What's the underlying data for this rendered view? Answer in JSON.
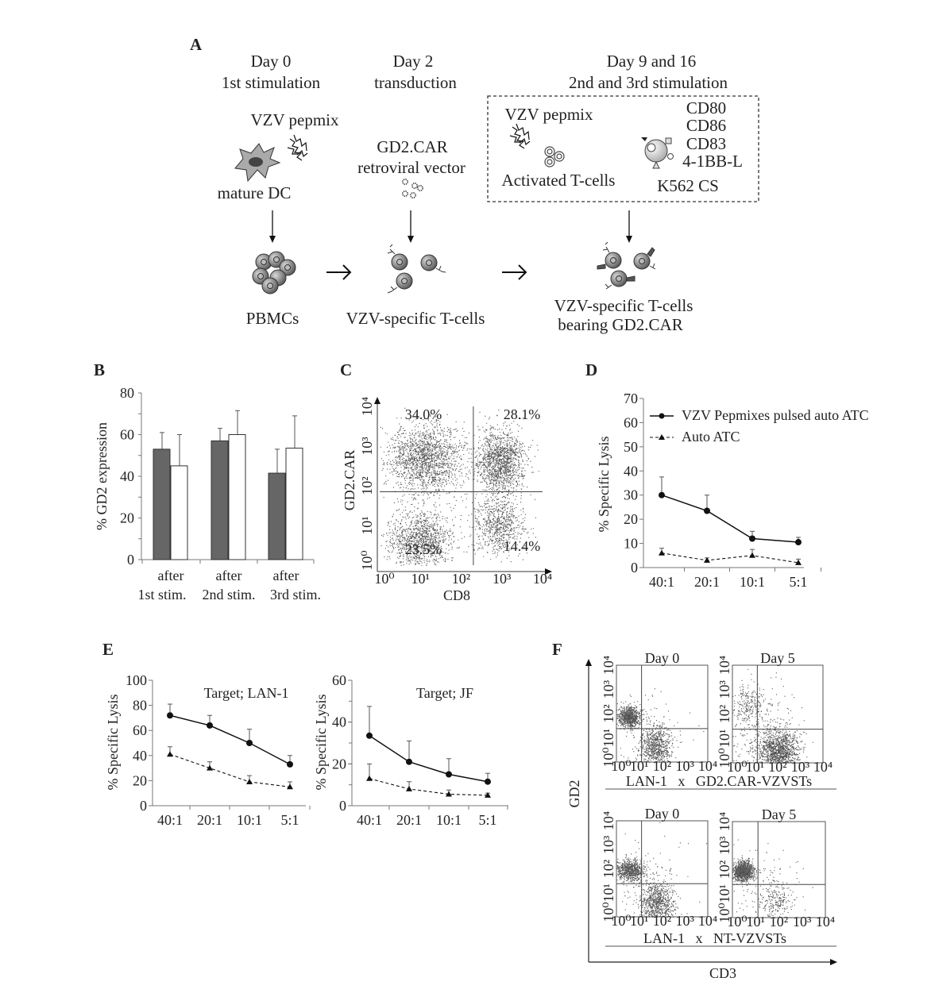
{
  "panel_labels": {
    "A": "A",
    "B": "B",
    "C": "C",
    "D": "D",
    "E": "E",
    "F": "F"
  },
  "schematic": {
    "steps": [
      {
        "day": "Day 0",
        "event": "1st stimulation"
      },
      {
        "day": "Day 2",
        "event": "transduction"
      },
      {
        "day": "Day 9 and 16",
        "event": "2nd and 3rd stimulation"
      }
    ],
    "labels": {
      "vzv_pepmix_1": "VZV pepmix",
      "mature_dc": "mature DC",
      "gd2car": "GD2.CAR",
      "retroviral_vector": "retroviral vector",
      "vzv_pepmix_2": "VZV pepmix",
      "activated_tcells": "Activated T-cells",
      "costim": [
        "CD80",
        "CD86",
        "CD83",
        "4-1BB-L"
      ],
      "k562": "K562 CS",
      "pbmcs": "PBMCs",
      "vzv_tcells": "VZV-specific T-cells",
      "final_line1": "VZV-specific T-cells",
      "final_line2": "bearing GD2.CAR"
    },
    "icons": [
      "dendritic-cell-icon",
      "peptide-mix-icon",
      "retrovirus-icon",
      "pbmc-cluster-icon",
      "t-cell-icon",
      "activated-t-cell-icon",
      "k562-cell-icon",
      "arrow-icon"
    ]
  },
  "chart_data": [
    {
      "panel": "B",
      "type": "bar",
      "categories": [
        [
          "after",
          "1st stim."
        ],
        [
          "after",
          "2nd stim."
        ],
        [
          "after",
          "3rd stim."
        ]
      ],
      "series": [
        {
          "values": [
            53,
            57,
            41.5
          ],
          "errors": [
            8,
            6,
            11.5
          ],
          "color": "#666666"
        },
        {
          "values": [
            45,
            60,
            53.5
          ],
          "errors": [
            15,
            11.5,
            15.5
          ],
          "color": "#ffffff"
        }
      ],
      "ylabel": "% GD2 expression",
      "ylim": [
        0,
        80
      ],
      "yticks": [
        0,
        20,
        40,
        60,
        80
      ],
      "grid": false
    },
    {
      "panel": "C",
      "type": "scatter",
      "subtype": "flow-cytometry-dot-plot",
      "xlabel": "CD8",
      "ylabel": "GD2.CAR",
      "scale": "log",
      "xticks": [
        "10⁰",
        "10¹",
        "10²",
        "10³",
        "10⁴"
      ],
      "yticks": [
        "10⁰",
        "10¹",
        "10²",
        "10³",
        "10⁴"
      ],
      "gate_decades": [
        2.3,
        1.85
      ],
      "quadrants": {
        "upper_left": "34.0%",
        "upper_right": "28.1%",
        "lower_left": "23.5%",
        "lower_right": "14.4%"
      },
      "populations": [
        {
          "center_decades": [
            1.1,
            2.7
          ],
          "spread": [
            0.45,
            0.45
          ],
          "weight": 0.34
        },
        {
          "center_decades": [
            2.95,
            2.6
          ],
          "spread": [
            0.3,
            0.4
          ],
          "weight": 0.28
        },
        {
          "center_decades": [
            1.0,
            0.65
          ],
          "spread": [
            0.4,
            0.35
          ],
          "weight": 0.235
        },
        {
          "center_decades": [
            2.95,
            1.0
          ],
          "spread": [
            0.3,
            0.35
          ],
          "weight": 0.144
        }
      ]
    },
    {
      "panel": "D",
      "type": "line",
      "categories": [
        "40:1",
        "20:1",
        "10:1",
        "5:1"
      ],
      "series": [
        {
          "name": "VZV Pepmixes pulsed auto ATC",
          "values": [
            30,
            23.5,
            12,
            10.5
          ],
          "errors": [
            7.5,
            6.5,
            3,
            2
          ],
          "marker": "circle",
          "line": "solid"
        },
        {
          "name": "Auto ATC",
          "values": [
            6,
            3,
            5,
            2
          ],
          "errors": [
            2,
            1,
            2.5,
            1.5
          ],
          "marker": "triangle",
          "line": "dashed"
        }
      ],
      "ylabel": "% Specific Lysis",
      "ylim": [
        0,
        70
      ],
      "yticks": [
        0,
        10,
        20,
        30,
        40,
        50,
        60,
        70
      ],
      "legend": "top-right",
      "grid": false
    },
    {
      "panel": "E",
      "type": "line",
      "title": "Target; LAN-1",
      "categories": [
        "40:1",
        "20:1",
        "10:1",
        "5:1"
      ],
      "series": [
        {
          "values": [
            72,
            64,
            50,
            33
          ],
          "errors": [
            9,
            8,
            11,
            7
          ],
          "marker": "circle",
          "line": "solid"
        },
        {
          "values": [
            41,
            30,
            19,
            15
          ],
          "errors": [
            6,
            5,
            5,
            4
          ],
          "marker": "triangle",
          "line": "dashed"
        }
      ],
      "ylabel": "% Specific Lysis",
      "ylim": [
        0,
        100
      ],
      "yticks": [
        0,
        20,
        40,
        60,
        80,
        100
      ],
      "grid": false
    },
    {
      "panel": "E",
      "type": "line",
      "title": "Target; JF",
      "categories": [
        "40:1",
        "20:1",
        "10:1",
        "5:1"
      ],
      "series": [
        {
          "values": [
            33.5,
            21,
            15,
            11.5
          ],
          "errors": [
            14,
            10,
            7.5,
            4
          ],
          "marker": "circle",
          "line": "solid"
        },
        {
          "values": [
            13,
            8,
            5.5,
            5
          ],
          "errors": [
            7,
            3.5,
            2,
            1
          ],
          "marker": "triangle",
          "line": "dashed"
        }
      ],
      "ylabel": "% Specific Lysis",
      "ylim": [
        0,
        60
      ],
      "yticks": [
        0,
        20,
        40,
        60
      ],
      "grid": false
    },
    {
      "panel": "F",
      "type": "scatter",
      "subtype": "flow-cytometry-dot-plot",
      "title": "Day 0",
      "group": "LAN-1   x   GD2.CAR-VZVSTs",
      "xlabel": "CD3",
      "ylabel": "GD2",
      "xticks": [
        "10⁰",
        "10¹",
        "10²",
        "10³",
        "10⁴"
      ],
      "yticks": [
        "10⁰",
        "10¹",
        "10²",
        "10³",
        "10⁴"
      ],
      "gate_decades": [
        1.1,
        1.38
      ],
      "populations": [
        {
          "center_decades": [
            0.55,
            1.87
          ],
          "spread": [
            0.25,
            0.22
          ],
          "weight": 0.5
        },
        {
          "center_decades": [
            1.7,
            0.65
          ],
          "spread": [
            0.35,
            0.45
          ],
          "weight": 0.45
        },
        {
          "center_decades": [
            1.2,
            1.2
          ],
          "spread": [
            1.0,
            1.0
          ],
          "weight": 0.05
        }
      ]
    },
    {
      "panel": "F",
      "type": "scatter",
      "subtype": "flow-cytometry-dot-plot",
      "title": "Day 5",
      "group": "LAN-1   x   GD2.CAR-VZVSTs",
      "xticks": [
        "10⁰",
        "10¹",
        "10²",
        "10³",
        "10⁴"
      ],
      "yticks": [
        "10⁰",
        "10¹",
        "10²",
        "10³",
        "10⁴"
      ],
      "gate_decades": [
        1.1,
        1.38
      ],
      "populations": [
        {
          "center_decades": [
            0.7,
            2.4
          ],
          "spread": [
            0.35,
            0.4
          ],
          "weight": 0.12
        },
        {
          "center_decades": [
            2.05,
            0.5
          ],
          "spread": [
            0.45,
            0.4
          ],
          "weight": 0.7
        },
        {
          "center_decades": [
            1.3,
            1.3
          ],
          "spread": [
            0.9,
            0.9
          ],
          "weight": 0.18
        }
      ]
    },
    {
      "panel": "F",
      "type": "scatter",
      "subtype": "flow-cytometry-dot-plot",
      "title": "Day 0",
      "group": "LAN-1   x   NT-VZVSTs",
      "xticks": [
        "10⁰",
        "10¹",
        "10²",
        "10³",
        "10⁴"
      ],
      "yticks": [
        "10⁰",
        "10¹",
        "10²",
        "10³",
        "10⁴"
      ],
      "gate_decades": [
        1.1,
        1.38
      ],
      "populations": [
        {
          "center_decades": [
            0.6,
            1.95
          ],
          "spread": [
            0.3,
            0.22
          ],
          "weight": 0.45
        },
        {
          "center_decades": [
            1.75,
            0.55
          ],
          "spread": [
            0.35,
            0.45
          ],
          "weight": 0.48
        },
        {
          "center_decades": [
            1.3,
            1.3
          ],
          "spread": [
            1.0,
            1.0
          ],
          "weight": 0.07
        }
      ]
    },
    {
      "panel": "F",
      "type": "scatter",
      "subtype": "flow-cytometry-dot-plot",
      "title": "Day 5",
      "group": "LAN-1   x   NT-VZVSTs",
      "xticks": [
        "10⁰",
        "10¹",
        "10²",
        "10³",
        "10⁴"
      ],
      "yticks": [
        "10⁰",
        "10¹",
        "10²",
        "10³",
        "10⁴"
      ],
      "gate_decades": [
        1.1,
        1.38
      ],
      "populations": [
        {
          "center_decades": [
            0.45,
            1.93
          ],
          "spread": [
            0.22,
            0.2
          ],
          "weight": 0.78
        },
        {
          "center_decades": [
            1.85,
            0.7
          ],
          "spread": [
            0.3,
            0.35
          ],
          "weight": 0.12
        },
        {
          "center_decades": [
            1.3,
            1.3
          ],
          "spread": [
            0.9,
            0.9
          ],
          "weight": 0.1
        }
      ]
    }
  ],
  "panel_f_axes": {
    "xlabel": "CD3",
    "ylabel": "GD2"
  }
}
